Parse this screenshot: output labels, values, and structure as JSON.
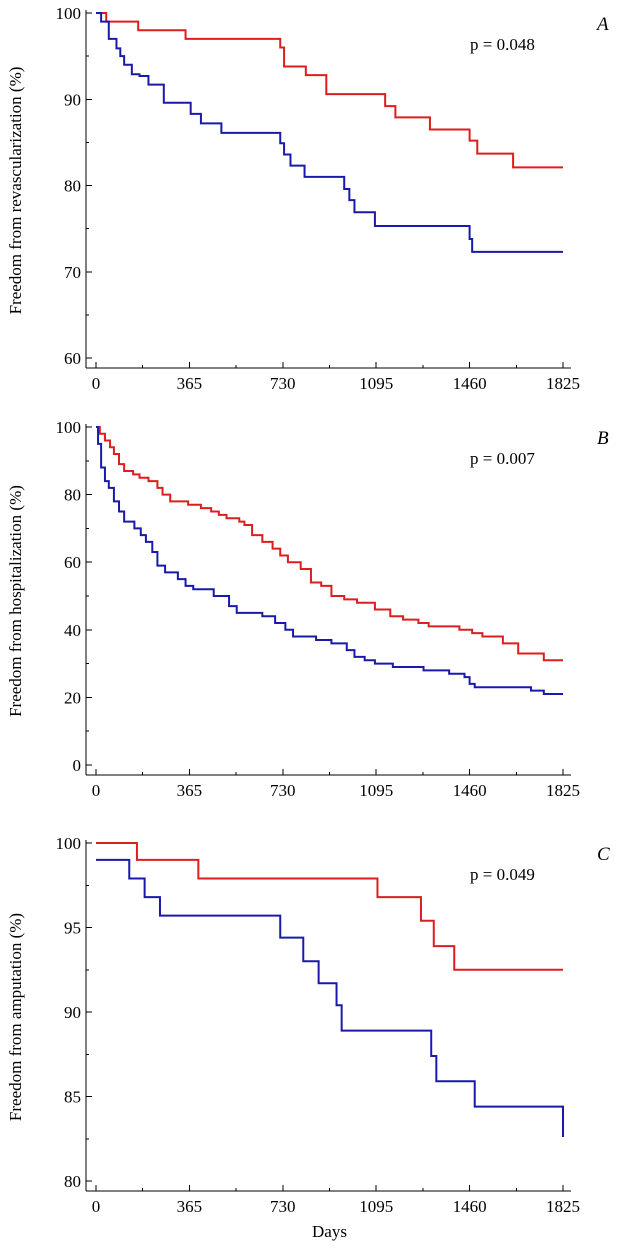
{
  "colors": {
    "red": "#dc1e1e",
    "blue": "#1a1aaa"
  },
  "chart_data": [
    {
      "type": "line",
      "panel_label": "A",
      "ylabel": "Freedom from revascularization (%)",
      "xlabel": "",
      "annotation": "p = 0.048",
      "xlim": [
        0,
        1825
      ],
      "ylim": [
        60,
        100
      ],
      "xticks": [
        0,
        365,
        730,
        1095,
        1460,
        1825
      ],
      "xtick_labels": [
        "0",
        "365",
        "730",
        "1095",
        "1460",
        "1825"
      ],
      "yticks": [
        60,
        70,
        80,
        90,
        100
      ],
      "ytick_labels": [
        "60",
        "70",
        "80",
        "90",
        "100"
      ],
      "series": [
        {
          "color": "red",
          "steps": [
            [
              0,
              100
            ],
            [
              40,
              99
            ],
            [
              165,
              98
            ],
            [
              350,
              97
            ],
            [
              720,
              96
            ],
            [
              735,
              93.8
            ],
            [
              820,
              92.8
            ],
            [
              900,
              90.6
            ],
            [
              1130,
              89.2
            ],
            [
              1170,
              87.9
            ],
            [
              1305,
              86.5
            ],
            [
              1460,
              85.2
            ],
            [
              1490,
              83.7
            ],
            [
              1630,
              82.1
            ],
            [
              1825,
              82.1
            ]
          ]
        },
        {
          "color": "blue",
          "steps": [
            [
              0,
              100
            ],
            [
              20,
              99
            ],
            [
              50,
              97
            ],
            [
              80,
              95.9
            ],
            [
              95,
              95
            ],
            [
              110,
              94
            ],
            [
              140,
              92.9
            ],
            [
              170,
              92.7
            ],
            [
              205,
              91.7
            ],
            [
              265,
              89.6
            ],
            [
              370,
              88.3
            ],
            [
              410,
              87.2
            ],
            [
              490,
              86.1
            ],
            [
              720,
              84.9
            ],
            [
              735,
              83.6
            ],
            [
              760,
              82.3
            ],
            [
              815,
              81
            ],
            [
              970,
              79.6
            ],
            [
              990,
              78.3
            ],
            [
              1010,
              76.9
            ],
            [
              1090,
              75.3
            ],
            [
              1460,
              73.8
            ],
            [
              1470,
              72.3
            ],
            [
              1825,
              72.3
            ]
          ]
        }
      ]
    },
    {
      "type": "line",
      "panel_label": "B",
      "ylabel": "Freedom from hospitalization (%)",
      "xlabel": "",
      "annotation": "p = 0.007",
      "xlim": [
        0,
        1825
      ],
      "ylim": [
        0,
        100
      ],
      "xticks": [
        0,
        365,
        730,
        1095,
        1460,
        1825
      ],
      "xtick_labels": [
        "0",
        "365",
        "730",
        "1095",
        "1460",
        "1825"
      ],
      "yticks": [
        0,
        20,
        40,
        60,
        80,
        100
      ],
      "ytick_labels": [
        "0",
        "20",
        "40",
        "60",
        "80",
        "100"
      ],
      "series": [
        {
          "color": "red",
          "steps": [
            [
              0,
              100
            ],
            [
              15,
              98
            ],
            [
              35,
              96
            ],
            [
              55,
              94
            ],
            [
              70,
              92
            ],
            [
              90,
              89
            ],
            [
              110,
              87
            ],
            [
              145,
              86
            ],
            [
              170,
              85
            ],
            [
              205,
              84
            ],
            [
              240,
              82
            ],
            [
              260,
              80
            ],
            [
              290,
              78
            ],
            [
              360,
              77
            ],
            [
              410,
              76
            ],
            [
              450,
              75
            ],
            [
              480,
              74
            ],
            [
              510,
              73
            ],
            [
              560,
              72
            ],
            [
              580,
              71
            ],
            [
              610,
              68
            ],
            [
              650,
              66
            ],
            [
              690,
              64
            ],
            [
              720,
              62
            ],
            [
              750,
              60
            ],
            [
              800,
              58
            ],
            [
              840,
              54
            ],
            [
              880,
              53
            ],
            [
              920,
              50
            ],
            [
              970,
              49
            ],
            [
              1020,
              48
            ],
            [
              1090,
              46
            ],
            [
              1150,
              44
            ],
            [
              1200,
              43
            ],
            [
              1260,
              42
            ],
            [
              1300,
              41
            ],
            [
              1420,
              40
            ],
            [
              1470,
              39
            ],
            [
              1510,
              38
            ],
            [
              1590,
              36
            ],
            [
              1650,
              33
            ],
            [
              1750,
              31
            ],
            [
              1825,
              31
            ]
          ]
        },
        {
          "color": "blue",
          "steps": [
            [
              0,
              100
            ],
            [
              8,
              95
            ],
            [
              20,
              88
            ],
            [
              35,
              84
            ],
            [
              50,
              82
            ],
            [
              70,
              78
            ],
            [
              90,
              75
            ],
            [
              110,
              72
            ],
            [
              150,
              70
            ],
            [
              175,
              68
            ],
            [
              195,
              66
            ],
            [
              220,
              63
            ],
            [
              240,
              59
            ],
            [
              270,
              57
            ],
            [
              320,
              55
            ],
            [
              350,
              53
            ],
            [
              380,
              52
            ],
            [
              460,
              50
            ],
            [
              520,
              47
            ],
            [
              550,
              45
            ],
            [
              650,
              44
            ],
            [
              700,
              42
            ],
            [
              740,
              40
            ],
            [
              770,
              38
            ],
            [
              860,
              37
            ],
            [
              920,
              36
            ],
            [
              980,
              34
            ],
            [
              1010,
              32
            ],
            [
              1050,
              31
            ],
            [
              1090,
              30
            ],
            [
              1160,
              29
            ],
            [
              1280,
              28
            ],
            [
              1380,
              27
            ],
            [
              1440,
              26
            ],
            [
              1460,
              24
            ],
            [
              1480,
              23
            ],
            [
              1700,
              22
            ],
            [
              1750,
              21
            ],
            [
              1825,
              21
            ]
          ]
        }
      ]
    },
    {
      "type": "line",
      "panel_label": "C",
      "ylabel": "Freedom from amputation (%)",
      "xlabel": "Days",
      "annotation": "p = 0.049",
      "xlim": [
        0,
        1825
      ],
      "ylim": [
        80,
        100
      ],
      "xticks": [
        0,
        365,
        730,
        1095,
        1460,
        1825
      ],
      "xtick_labels": [
        "0",
        "365",
        "730",
        "1095",
        "1460",
        "1825"
      ],
      "yticks": [
        80,
        85,
        90,
        95,
        100
      ],
      "ytick_labels": [
        "80",
        "85",
        "90",
        "95",
        "100"
      ],
      "series": [
        {
          "color": "red",
          "steps": [
            [
              0,
              100
            ],
            [
              160,
              99
            ],
            [
              400,
              97.9
            ],
            [
              1100,
              96.8
            ],
            [
              1270,
              95.4
            ],
            [
              1320,
              93.9
            ],
            [
              1400,
              92.5
            ],
            [
              1825,
              92.5
            ]
          ]
        },
        {
          "color": "blue",
          "steps": [
            [
              0,
              99
            ],
            [
              130,
              97.9
            ],
            [
              190,
              96.8
            ],
            [
              250,
              95.7
            ],
            [
              720,
              94.4
            ],
            [
              810,
              93
            ],
            [
              870,
              91.7
            ],
            [
              940,
              90.4
            ],
            [
              960,
              88.9
            ],
            [
              1310,
              87.4
            ],
            [
              1330,
              85.9
            ],
            [
              1480,
              84.4
            ],
            [
              1825,
              84.4
            ],
            [
              1825,
              82.6
            ]
          ]
        }
      ]
    }
  ]
}
